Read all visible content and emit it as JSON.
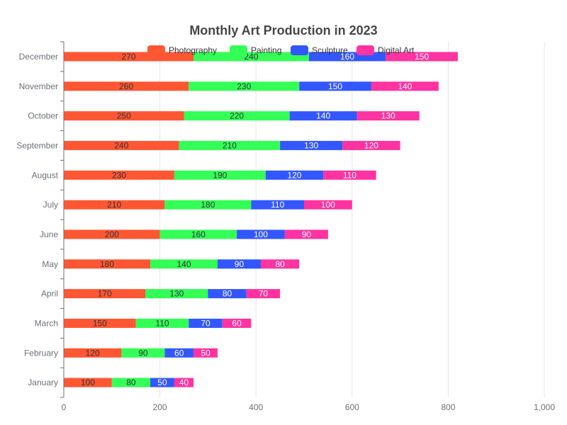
{
  "chart_data": {
    "type": "bar",
    "orientation": "horizontal",
    "stacked": true,
    "title": "Monthly Art Production in 2023",
    "xlabel": "",
    "ylabel": "",
    "xlim": [
      0,
      1000
    ],
    "x_ticks": [
      "0",
      "200",
      "400",
      "600",
      "800",
      "1,000"
    ],
    "grid": true,
    "legend_position": "top-center",
    "categories": [
      "January",
      "February",
      "March",
      "April",
      "May",
      "June",
      "July",
      "August",
      "September",
      "October",
      "November",
      "December"
    ],
    "series": [
      {
        "name": "Photography",
        "color": "#ff5733",
        "label_color": "#333333",
        "values": [
          100,
          120,
          150,
          170,
          180,
          200,
          210,
          230,
          240,
          250,
          260,
          270
        ]
      },
      {
        "name": "Painting",
        "color": "#33ff57",
        "label_color": "#333333",
        "values": [
          80,
          90,
          110,
          130,
          140,
          160,
          180,
          190,
          210,
          220,
          230,
          240
        ]
      },
      {
        "name": "Sculpture",
        "color": "#3357ff",
        "label_color": "#ffffff",
        "values": [
          50,
          60,
          70,
          80,
          90,
          100,
          110,
          120,
          130,
          140,
          150,
          160
        ]
      },
      {
        "name": "Digital Art",
        "color": "#ff33a1",
        "label_color": "#ffffff",
        "values": [
          40,
          50,
          60,
          70,
          80,
          90,
          100,
          110,
          120,
          130,
          140,
          150
        ]
      }
    ]
  }
}
